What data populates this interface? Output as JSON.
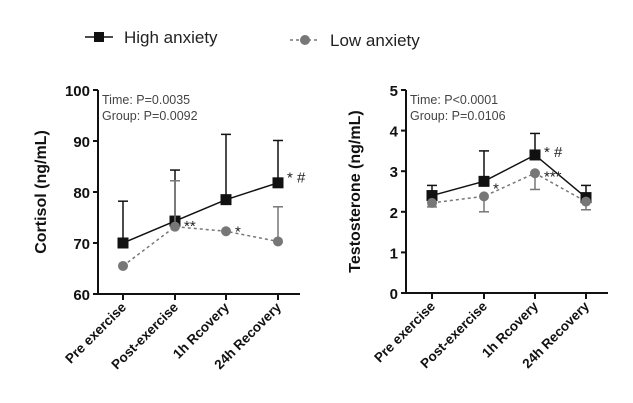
{
  "legend": [
    {
      "name": "High anxiety",
      "color": "#111111",
      "marker": "square",
      "line": "solid"
    },
    {
      "name": "Low anxiety",
      "color": "#777777",
      "marker": "circle",
      "line": "dashed"
    }
  ],
  "chart_data": [
    {
      "type": "line",
      "ylabel": "Cortisol (ng/mL)",
      "ylim": [
        60,
        100
      ],
      "yticks": [
        60,
        70,
        80,
        90,
        100
      ],
      "categories": [
        "Pre exercise",
        "Post-exercise",
        "1h Rcovery",
        "24h Recovery"
      ],
      "stats": [
        "Time: P=0.0035",
        "Group: P=0.0092"
      ],
      "series": [
        {
          "name": "High anxiety",
          "values": [
            70,
            74.3,
            78.5,
            81.8
          ],
          "err_upper": [
            78.2,
            84.3,
            91.3,
            90.1
          ]
        },
        {
          "name": "Low anxiety",
          "values": [
            65.5,
            73.2,
            72.3,
            70.3
          ],
          "err_upper": [
            65.5,
            82.2,
            72.3,
            77.1
          ]
        }
      ],
      "annotations": [
        {
          "cat": 1,
          "value": 73.5,
          "text": "**"
        },
        {
          "cat": 2,
          "value": 72.5,
          "text": "*"
        },
        {
          "cat": 3,
          "value": 83,
          "text": "* #"
        }
      ]
    },
    {
      "type": "line",
      "ylabel": "Testosterone (ng/mL)",
      "ylim": [
        0,
        5
      ],
      "yticks": [
        0,
        1,
        2,
        3,
        4,
        5
      ],
      "categories": [
        "Pre exercise",
        "Post-exercise",
        "1h Rcovery",
        "24h Recovery"
      ],
      "stats": [
        "Time: P<0.0001",
        "Group: P=0.0106"
      ],
      "series": [
        {
          "name": "High anxiety",
          "values": [
            2.4,
            2.75,
            3.4,
            2.35
          ],
          "err_upper": [
            2.65,
            3.5,
            3.93,
            2.65
          ]
        },
        {
          "name": "Low anxiety",
          "values": [
            2.22,
            2.38,
            2.95,
            2.25
          ],
          "err_lower": [
            2.12,
            2.0,
            2.55,
            2.05
          ]
        }
      ],
      "annotations": [
        {
          "cat": 1,
          "value": 2.6,
          "text": "*"
        },
        {
          "cat": 2,
          "value": 3.5,
          "text": "* #"
        },
        {
          "cat": 2,
          "value": 2.9,
          "text": "***"
        }
      ]
    }
  ]
}
